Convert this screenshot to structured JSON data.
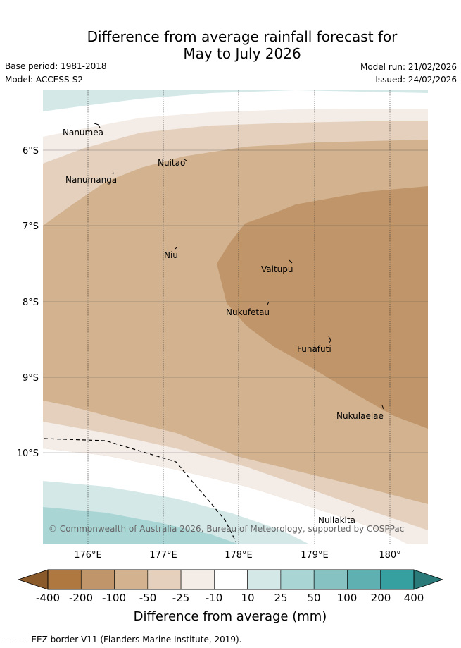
{
  "header": {
    "title_line1": "Difference from average rainfall forecast for",
    "title_line2": "May to July 2026",
    "base_period": "Base period: 1981-2018",
    "model": "Model: ACCESS-S2",
    "model_run": "Model run: 21/02/2026",
    "issued": "Issued: 24/02/2026"
  },
  "map": {
    "lat_labels": [
      "6°S",
      "7°S",
      "8°S",
      "9°S",
      "10°S"
    ],
    "lon_labels": [
      "176°E",
      "177°E",
      "178°E",
      "179°E",
      "180°"
    ],
    "places": [
      "Nanumea",
      "Nuitao",
      "Nanumanga",
      "Niu",
      "Vaitupu",
      "Nukufetau",
      "Funafuti",
      "Nukulaelae",
      "Nuilakita"
    ],
    "copyright": "© Commonwealth of Australia 2026, Bureau of Meteorology, supported by COSPPac"
  },
  "legend": {
    "ticks": [
      "-400",
      "-200",
      "-100",
      "-50",
      "-25",
      "-10",
      "10",
      "25",
      "50",
      "100",
      "200",
      "400"
    ],
    "colors": [
      "#8b5a2b",
      "#ae7840",
      "#c0956a",
      "#d2b28f",
      "#e4d0bd",
      "#f4ece6",
      "#ffffff",
      "#d4e8e8",
      "#a9d5d5",
      "#86c2c2",
      "#5fb0b0",
      "#369f9f",
      "#2a7a7a"
    ],
    "label": "Difference from average (mm)"
  },
  "footer": {
    "eez_note": "--  --  -- EEZ border V11 (Flanders Marine Institute, 2019)."
  }
}
